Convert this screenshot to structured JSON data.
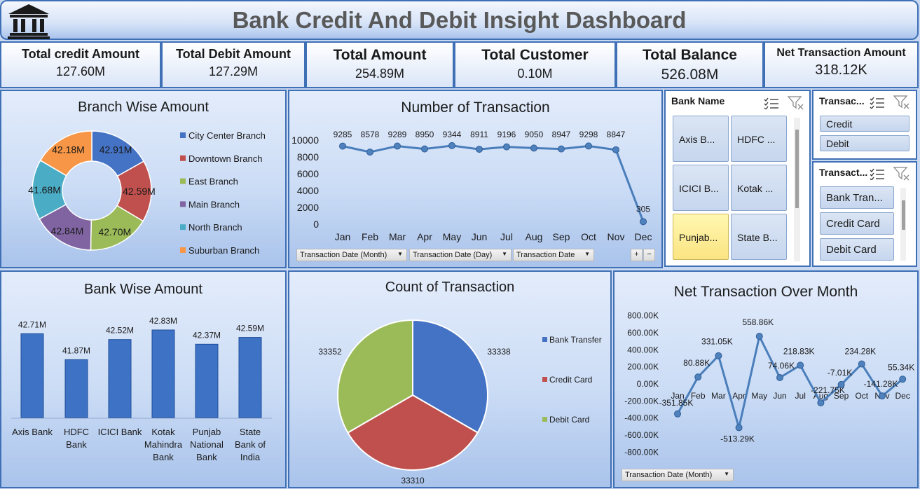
{
  "header": {
    "title": "Bank Credit And Debit Insight Dashboard"
  },
  "kpis": [
    {
      "label": "Total credit Amount",
      "value": "127.60M"
    },
    {
      "label": "Total Debit Amount",
      "value": "127.29M"
    },
    {
      "label": "Total Amount",
      "value": "254.89M"
    },
    {
      "label": "Total Customer",
      "value": "0.10M"
    },
    {
      "label": "Total Balance",
      "value": "526.08M"
    },
    {
      "label": "Net Transaction Amount",
      "value": "318.12K"
    }
  ],
  "colors": {
    "blue": "#4472c4",
    "red": "#c0504d",
    "green": "#9bbb59",
    "purple": "#8064a2",
    "teal": "#4bacc6",
    "orange": "#f79646",
    "line": "#4a7ebb"
  },
  "branch_chart": {
    "title": "Branch Wise Amount",
    "chart_data": {
      "type": "pie",
      "categories": [
        "City Center Branch",
        "Downtown Branch",
        "East Branch",
        "Main Branch",
        "North Branch",
        "Suburban Branch"
      ],
      "values": [
        42.91,
        42.59,
        42.7,
        42.84,
        41.68,
        42.18
      ],
      "data_labels": [
        "42.91M",
        "42.59M",
        "42.70M",
        "42.84M",
        "41.68M",
        "42.18M"
      ],
      "donut": true,
      "legend_position": "right"
    }
  },
  "txn_chart": {
    "title": "Number of Transaction",
    "chart_data": {
      "type": "line",
      "categories": [
        "Jan",
        "Feb",
        "Mar",
        "Apr",
        "May",
        "Jun",
        "Jul",
        "Aug",
        "Sep",
        "Oct",
        "Nov",
        "Dec"
      ],
      "values": [
        9285,
        8578,
        9289,
        8950,
        9344,
        8911,
        9196,
        9050,
        8947,
        9298,
        8847,
        305
      ],
      "yticks": [
        "10000",
        "8000",
        "6000",
        "4000",
        "2000",
        "0"
      ],
      "ylim": [
        0,
        10000
      ]
    },
    "filters": [
      "Transaction Date (Month)",
      "Transaction Date (Day)",
      "Transaction Date"
    ],
    "plus": "+",
    "minus": "−"
  },
  "bank_slicer": {
    "header": "Bank Name",
    "items": [
      "Axis B...",
      "HDFC ...",
      "ICICI B...",
      "Kotak ...",
      "Punjab...",
      "State B..."
    ],
    "selected_index": 4
  },
  "type_slicer": {
    "header": "Transac...",
    "items": [
      "Credit",
      "Debit"
    ]
  },
  "channel_slicer": {
    "header": "Transact...",
    "items": [
      "Bank Tran...",
      "Credit Card",
      "Debit Card"
    ]
  },
  "bank_chart": {
    "title": "Bank Wise Amount",
    "chart_data": {
      "type": "bar",
      "categories": [
        [
          "Axis Bank"
        ],
        [
          "HDFC",
          "Bank"
        ],
        [
          "ICICI Bank"
        ],
        [
          "Kotak",
          "Mahindra",
          "Bank"
        ],
        [
          "Punjab",
          "National",
          "Bank"
        ],
        [
          "State",
          "Bank of",
          "India"
        ]
      ],
      "values": [
        42.71,
        41.87,
        42.52,
        42.83,
        42.37,
        42.59
      ],
      "data_labels": [
        "42.71M",
        "41.87M",
        "42.52M",
        "42.83M",
        "42.37M",
        "42.59M"
      ]
    }
  },
  "count_chart": {
    "title": "Count of Transaction",
    "chart_data": {
      "type": "pie",
      "categories": [
        "Bank Transfer",
        "Credit Card",
        "Debit Card"
      ],
      "values": [
        33338,
        33310,
        33352
      ],
      "data_labels": [
        "33338",
        "33310",
        "33352"
      ],
      "legend_position": "right"
    }
  },
  "net_chart": {
    "title": "Net Transaction Over Month",
    "chart_data": {
      "type": "line",
      "categories": [
        "Jan",
        "Feb",
        "Mar",
        "Apr",
        "May",
        "Jun",
        "Jul",
        "Aug",
        "Sep",
        "Oct",
        "Nov",
        "Dec"
      ],
      "values": [
        -351.85,
        80.88,
        331.05,
        -513.29,
        558.86,
        74.06,
        218.83,
        -221.75,
        -7.01,
        234.28,
        -141.28,
        55.34
      ],
      "data_labels": [
        "-351.85K",
        "80.88K",
        "331.05K",
        "-513.29K",
        "558.86K",
        "74.06K",
        "218.83K",
        "-221.75K",
        "-7.01K",
        "234.28K",
        "-141.28K",
        "55.34K"
      ],
      "yticks": [
        "800.00K",
        "600.00K",
        "400.00K",
        "200.00K",
        "0.00K",
        "-200.00K",
        "-400.00K",
        "-600.00K",
        "-800.00K"
      ],
      "ylim": [
        -800,
        800
      ]
    },
    "filter": "Transaction Date (Month)"
  }
}
